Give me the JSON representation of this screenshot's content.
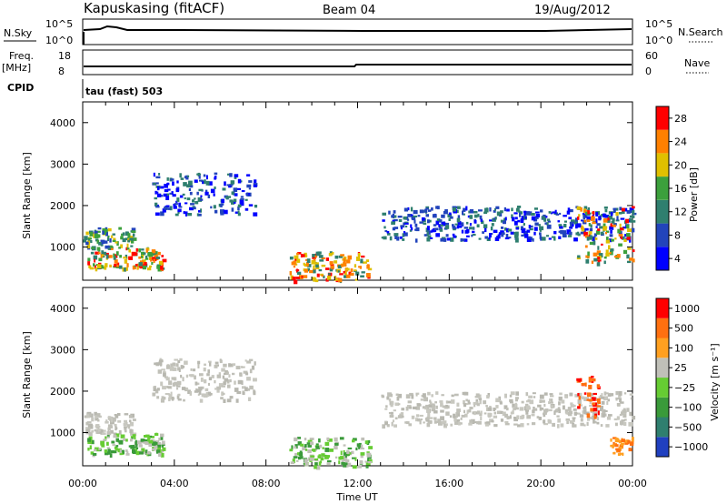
{
  "header": {
    "station": "Kapuskasing (fitACF)",
    "beam": "Beam 04",
    "date": "19/Aug/2012"
  },
  "strips": {
    "nsky_label": "N.Sky",
    "nsky_ticks": [
      "10^5",
      "10^0"
    ],
    "nsearch_label": "N.Search",
    "nsearch_ticks": [
      "10^5",
      "10^0"
    ],
    "freq_label": "Freq.",
    "freq_unit": "[MHz]",
    "freq_ticks": [
      "18",
      "8"
    ],
    "nave_label": "Nave",
    "nave_ticks": [
      "60",
      "0"
    ],
    "cpid_label": "CPID",
    "cpid_value": "tau (fast) 503"
  },
  "chart_data": [
    {
      "type": "heatmap",
      "name": "Power",
      "ylabel": "Slant Range [km]",
      "yticks": [
        "4000",
        "3000",
        "2000",
        "1000"
      ],
      "ylim": [
        200,
        4500
      ],
      "colorbar": {
        "label": "Power [dB]",
        "ticks": [
          "28",
          "24",
          "20",
          "16",
          "12",
          "8",
          "4"
        ],
        "colors": [
          "#0000ff",
          "#2244bb",
          "#2f7f6f",
          "#3ca03c",
          "#e0c000",
          "#ff8000",
          "#ff0000"
        ]
      },
      "bands": [
        {
          "t0": 0.0,
          "t1": 2.2,
          "r0": 1000,
          "r1": 1500,
          "dominant": "green"
        },
        {
          "t0": 0.2,
          "t1": 3.5,
          "r0": 500,
          "r1": 1000,
          "dominant": "green-orange"
        },
        {
          "t0": 3.0,
          "t1": 7.5,
          "r0": 1800,
          "r1": 2800,
          "dominant": "blue"
        },
        {
          "t0": 9.0,
          "t1": 12.5,
          "r0": 200,
          "r1": 900,
          "dominant": "red-orange"
        },
        {
          "t0": 13.0,
          "t1": 24.0,
          "r0": 1200,
          "r1": 2000,
          "dominant": "blue"
        },
        {
          "t0": 21.5,
          "t1": 24.0,
          "r0": 600,
          "r1": 2000,
          "dominant": "green-orange"
        }
      ]
    },
    {
      "type": "heatmap",
      "name": "Velocity",
      "ylabel": "Slant Range [km]",
      "yticks": [
        "4000",
        "3000",
        "2000",
        "1000"
      ],
      "ylim": [
        200,
        4500
      ],
      "colorbar": {
        "label": "Velocity [m s⁻¹]",
        "ticks": [
          "1000",
          "500",
          "100",
          "25",
          "−25",
          "−100",
          "−500",
          "−1000"
        ],
        "colors": [
          "#2040c0",
          "#2f7f6f",
          "#3a9a3a",
          "#66cc33",
          "#c0c0b8",
          "#ffa020",
          "#ff7010",
          "#ff0000"
        ]
      },
      "bands": [
        {
          "t0": 0.0,
          "t1": 2.2,
          "r0": 1000,
          "r1": 1500,
          "dominant": "grey"
        },
        {
          "t0": 0.2,
          "t1": 3.5,
          "r0": 500,
          "r1": 1000,
          "dominant": "grey-green"
        },
        {
          "t0": 3.0,
          "t1": 7.5,
          "r0": 1800,
          "r1": 2800,
          "dominant": "grey"
        },
        {
          "t0": 9.0,
          "t1": 12.5,
          "r0": 200,
          "r1": 900,
          "dominant": "green"
        },
        {
          "t0": 13.0,
          "t1": 24.0,
          "r0": 1200,
          "r1": 2000,
          "dominant": "grey"
        },
        {
          "t0": 21.5,
          "t1": 22.5,
          "r0": 1400,
          "r1": 2400,
          "dominant": "red"
        },
        {
          "t0": 23.0,
          "t1": 24.0,
          "r0": 500,
          "r1": 900,
          "dominant": "orange"
        }
      ]
    }
  ],
  "xaxis": {
    "label": "Time UT",
    "ticks": [
      "00:00",
      "04:00",
      "08:00",
      "12:00",
      "16:00",
      "20:00",
      "00:00"
    ]
  }
}
